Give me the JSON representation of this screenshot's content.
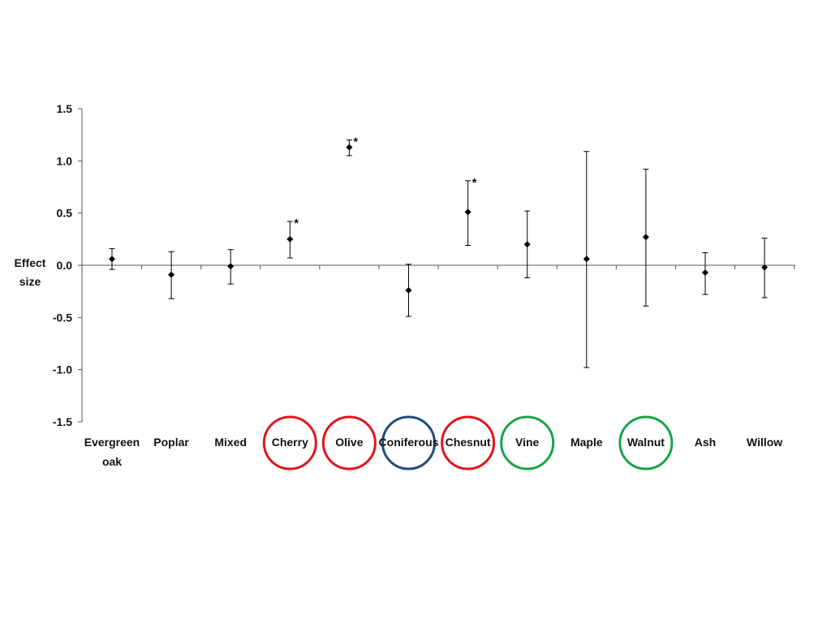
{
  "chart_data": {
    "type": "scatter",
    "title": "",
    "xlabel": "",
    "ylabel_lines": [
      "Effect",
      "size"
    ],
    "ylim": [
      -1.5,
      1.5
    ],
    "yticks": [
      {
        "value": 1.5,
        "label": "1.5"
      },
      {
        "value": 1.0,
        "label": "1.0"
      },
      {
        "value": 0.5,
        "label": "0.5"
      },
      {
        "value": 0.0,
        "label": "0.0"
      },
      {
        "value": -0.5,
        "label": "-0.5"
      },
      {
        "value": -1.0,
        "label": "-1.0"
      },
      {
        "value": -1.5,
        "label": "-1.5"
      }
    ],
    "grid": false,
    "legend": "none",
    "marker_color": "#000000",
    "circle_colors": {
      "red": "#e0161c",
      "blue": "#1f4e79",
      "green": "#19a34a"
    },
    "points": [
      {
        "category": [
          "Evergreen",
          "oak"
        ],
        "value": 0.06,
        "lower": -0.04,
        "upper": 0.16,
        "significant": false,
        "highlight": null
      },
      {
        "category": [
          "Poplar"
        ],
        "value": -0.09,
        "lower": -0.32,
        "upper": 0.13,
        "significant": false,
        "highlight": null
      },
      {
        "category": [
          "Mixed"
        ],
        "value": -0.01,
        "lower": -0.18,
        "upper": 0.15,
        "significant": false,
        "highlight": null
      },
      {
        "category": [
          "Cherry"
        ],
        "value": 0.25,
        "lower": 0.07,
        "upper": 0.42,
        "significant": true,
        "highlight": "red"
      },
      {
        "category": [
          "Olive"
        ],
        "value": 1.13,
        "lower": 1.05,
        "upper": 1.2,
        "significant": true,
        "highlight": "red"
      },
      {
        "category": [
          "Coniferous"
        ],
        "value": -0.24,
        "lower": -0.49,
        "upper": 0.01,
        "significant": false,
        "highlight": "blue"
      },
      {
        "category": [
          "Chesnut"
        ],
        "value": 0.51,
        "lower": 0.19,
        "upper": 0.81,
        "significant": true,
        "highlight": "red"
      },
      {
        "category": [
          "Vine"
        ],
        "value": 0.2,
        "lower": -0.12,
        "upper": 0.52,
        "significant": false,
        "highlight": "green"
      },
      {
        "category": [
          "Maple"
        ],
        "value": 0.06,
        "lower": -0.98,
        "upper": 1.09,
        "significant": false,
        "highlight": null
      },
      {
        "category": [
          "Walnut"
        ],
        "value": 0.27,
        "lower": -0.39,
        "upper": 0.92,
        "significant": false,
        "highlight": "green"
      },
      {
        "category": [
          "Ash"
        ],
        "value": -0.07,
        "lower": -0.28,
        "upper": 0.12,
        "significant": false,
        "highlight": null
      },
      {
        "category": [
          "Willow"
        ],
        "value": -0.02,
        "lower": -0.31,
        "upper": 0.26,
        "significant": false,
        "highlight": null
      }
    ],
    "significance_marker": "*"
  }
}
